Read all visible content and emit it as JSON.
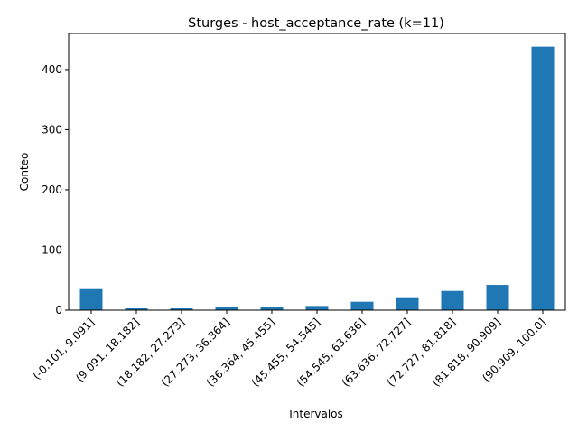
{
  "chart_data": {
    "type": "bar",
    "title": "Sturges - host_acceptance_rate (k=11)",
    "xlabel": "Intervalos",
    "ylabel": "Conteo",
    "categories": [
      "(-0.101, 9.091]",
      "(9.091, 18.182]",
      "(18.182, 27.273]",
      "(27.273, 36.364]",
      "(36.364, 45.455]",
      "(45.455, 54.545]",
      "(54.545, 63.636]",
      "(63.636, 72.727]",
      "(72.727, 81.818]",
      "(81.818, 90.909]",
      "(90.909, 100.0]"
    ],
    "values": [
      35,
      3,
      3,
      5,
      5,
      7,
      14,
      20,
      32,
      42,
      438
    ],
    "ylim": [
      0,
      460
    ],
    "yticks": [
      0,
      100,
      200,
      300,
      400
    ],
    "grid": false,
    "bar_color": "#1f77b4"
  }
}
